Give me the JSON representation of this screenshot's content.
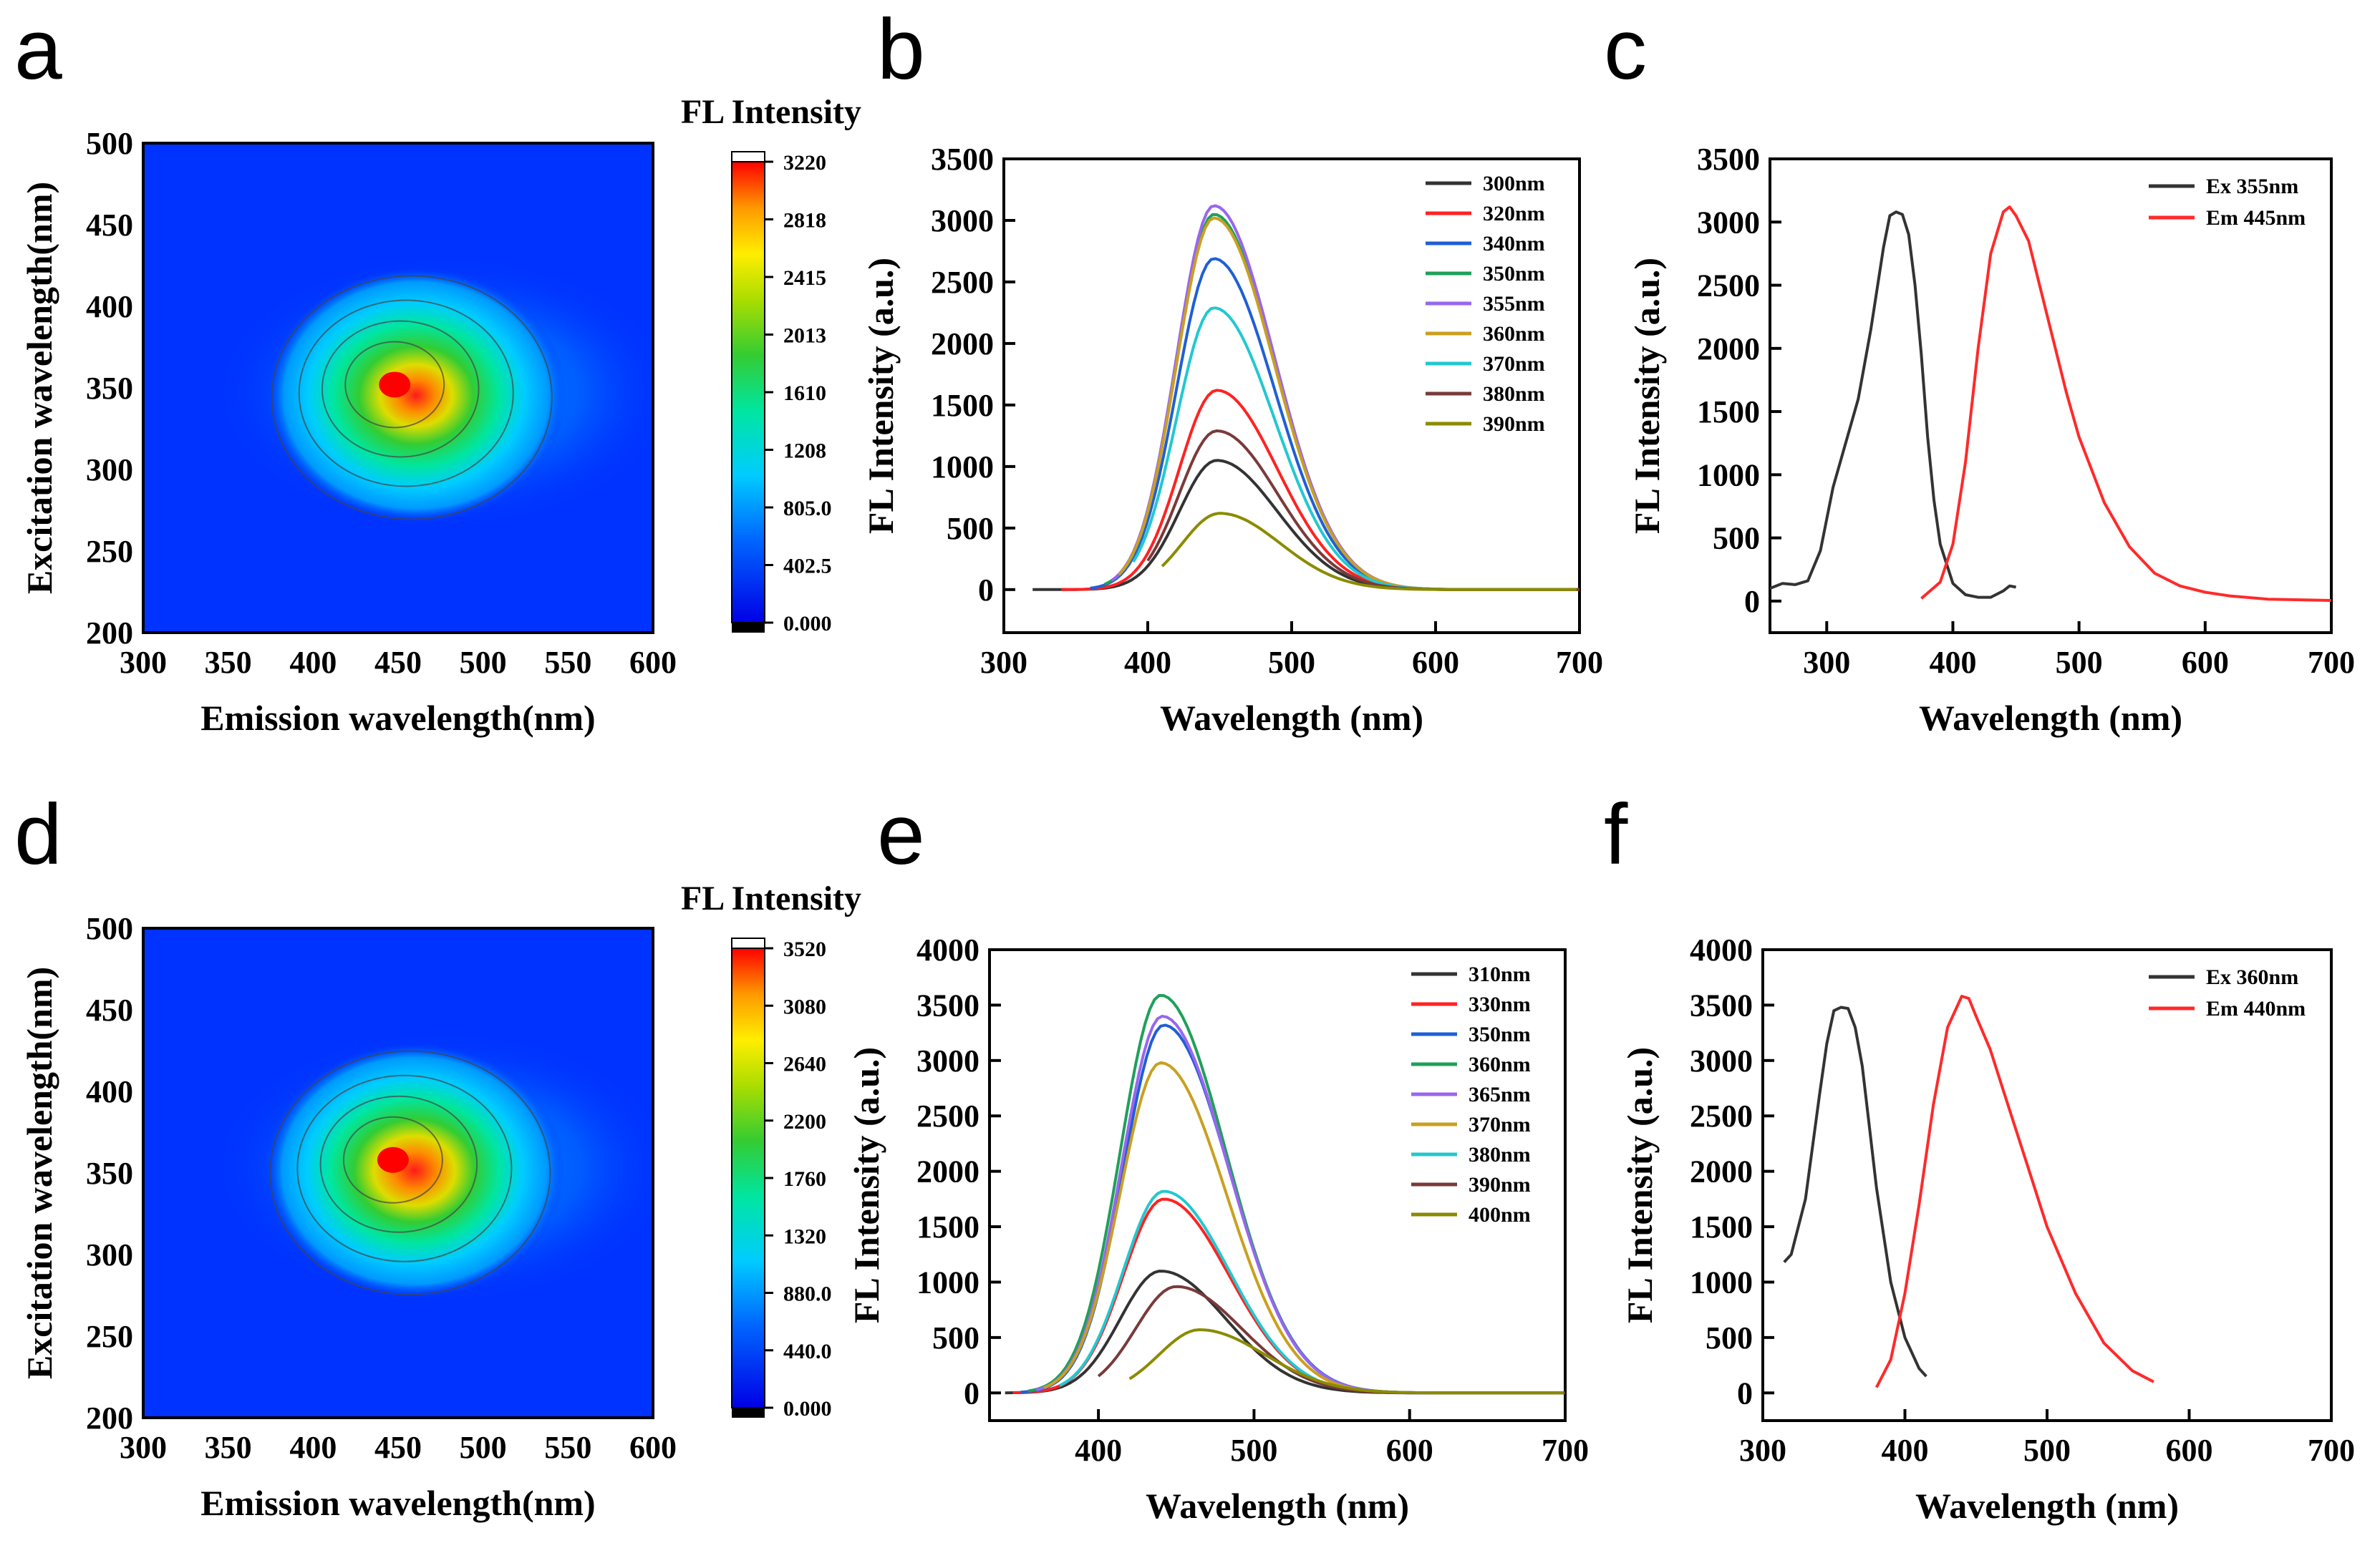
{
  "figure": {
    "panels": [
      "a",
      "b",
      "c",
      "d",
      "e",
      "f"
    ]
  },
  "chart_data": [
    {
      "id": "a",
      "type": "heatmap",
      "title": "",
      "colorbar_title": "FL Intensity",
      "xlabel": "Emission wavelength(nm)",
      "ylabel": "Excitation wavelength(nm)",
      "xlim": [
        300,
        600
      ],
      "ylim": [
        200,
        500
      ],
      "xticks": [
        "300",
        "350",
        "400",
        "450",
        "500",
        "550",
        "600"
      ],
      "yticks": [
        "200",
        "250",
        "300",
        "350",
        "400",
        "450",
        "500"
      ],
      "colorbar_ticks": [
        "0.000",
        "402.5",
        "805.0",
        "1208",
        "1610",
        "2013",
        "2415",
        "2818",
        "3220"
      ],
      "peak": {
        "emission": 448,
        "excitation": 352,
        "value": 3220
      },
      "background_color": "#0033ff"
    },
    {
      "id": "b",
      "type": "line",
      "xlabel": "Wavelength (nm)",
      "ylabel": "FL Intensity (a.u.)",
      "xlim": [
        300,
        700
      ],
      "ylim": [
        -350,
        3500
      ],
      "xticks": [
        "300",
        "400",
        "500",
        "600",
        "700"
      ],
      "yticks": [
        "0",
        "500",
        "1000",
        "1500",
        "2000",
        "2500",
        "3000",
        "3500"
      ],
      "series": [
        {
          "name": "300nm",
          "color": "#333333",
          "peak_x": 448,
          "peak_y": 1050,
          "x_start": 320
        },
        {
          "name": "320nm",
          "color": "#ff2222",
          "peak_x": 448,
          "peak_y": 1620,
          "x_start": 340
        },
        {
          "name": "340nm",
          "color": "#1f5fd6",
          "peak_x": 446,
          "peak_y": 2690,
          "x_start": 360
        },
        {
          "name": "350nm",
          "color": "#1fa05a",
          "peak_x": 446,
          "peak_y": 3050,
          "x_start": 370
        },
        {
          "name": "355nm",
          "color": "#9966ee",
          "peak_x": 446,
          "peak_y": 3120,
          "x_start": 375
        },
        {
          "name": "360nm",
          "color": "#c9a020",
          "peak_x": 446,
          "peak_y": 3020,
          "x_start": 380
        },
        {
          "name": "370nm",
          "color": "#22c8d0",
          "peak_x": 446,
          "peak_y": 2290,
          "x_start": 390
        },
        {
          "name": "380nm",
          "color": "#7a3a3a",
          "peak_x": 448,
          "peak_y": 1290,
          "x_start": 400
        },
        {
          "name": "390nm",
          "color": "#8b8b00",
          "peak_x": 450,
          "peak_y": 620,
          "x_start": 410
        }
      ]
    },
    {
      "id": "c",
      "type": "line",
      "xlabel": "Wavelength (nm)",
      "ylabel": "FL Intensity (a.u.)",
      "xlim": [
        255,
        700
      ],
      "ylim": [
        -250,
        3500
      ],
      "xticks": [
        "300",
        "400",
        "500",
        "600",
        "700"
      ],
      "yticks": [
        "0",
        "500",
        "1000",
        "1500",
        "2000",
        "2500",
        "3000",
        "3500"
      ],
      "series": [
        {
          "name": "Ex 355nm",
          "color": "#333333",
          "x": [
            255,
            265,
            275,
            285,
            295,
            305,
            315,
            325,
            335,
            345,
            350,
            355,
            360,
            365,
            370,
            375,
            380,
            385,
            390,
            400,
            410,
            420,
            430,
            440,
            445,
            450
          ],
          "y": [
            100,
            140,
            130,
            160,
            400,
            900,
            1250,
            1600,
            2150,
            2800,
            3050,
            3080,
            3060,
            2900,
            2500,
            1950,
            1300,
            800,
            450,
            140,
            50,
            30,
            30,
            80,
            120,
            110
          ]
        },
        {
          "name": "Em 445nm",
          "color": "#ff2a2a",
          "x": [
            375,
            390,
            400,
            410,
            420,
            430,
            440,
            445,
            450,
            460,
            470,
            480,
            490,
            500,
            520,
            540,
            560,
            580,
            600,
            620,
            650,
            700
          ],
          "y": [
            20,
            150,
            450,
            1100,
            2000,
            2750,
            3080,
            3120,
            3050,
            2850,
            2450,
            2050,
            1650,
            1300,
            780,
            430,
            220,
            120,
            70,
            40,
            15,
            5
          ]
        }
      ]
    },
    {
      "id": "d",
      "type": "heatmap",
      "title": "",
      "colorbar_title": "FL Intensity",
      "xlabel": "Emission wavelength(nm)",
      "ylabel": "Excitation wavelength(nm)",
      "xlim": [
        300,
        600
      ],
      "ylim": [
        200,
        500
      ],
      "xticks": [
        "300",
        "350",
        "400",
        "450",
        "500",
        "550",
        "600"
      ],
      "yticks": [
        "200",
        "250",
        "300",
        "350",
        "400",
        "450",
        "500"
      ],
      "colorbar_ticks": [
        "0.000",
        "440.0",
        "880.0",
        "1320",
        "1760",
        "2200",
        "2640",
        "3080",
        "3520"
      ],
      "peak": {
        "emission": 447,
        "excitation": 358,
        "value": 3520
      },
      "background_color": "#0033ff"
    },
    {
      "id": "e",
      "type": "line",
      "xlabel": "Wavelength (nm)",
      "ylabel": "FL Intensity (a.u.)",
      "xlim": [
        330,
        700
      ],
      "ylim": [
        -250,
        4000
      ],
      "xticks": [
        "400",
        "500",
        "600",
        "700"
      ],
      "yticks": [
        "0",
        "500",
        "1000",
        "1500",
        "2000",
        "2500",
        "3000",
        "3500",
        "4000"
      ],
      "series": [
        {
          "name": "310nm",
          "color": "#333333",
          "peak_x": 440,
          "peak_y": 1100,
          "x_start": 340
        },
        {
          "name": "330nm",
          "color": "#ff2222",
          "peak_x": 442,
          "peak_y": 1750,
          "x_start": 345
        },
        {
          "name": "350nm",
          "color": "#1f5fd6",
          "peak_x": 442,
          "peak_y": 3320,
          "x_start": 350
        },
        {
          "name": "360nm",
          "color": "#1fa05a",
          "peak_x": 440,
          "peak_y": 3590,
          "x_start": 355
        },
        {
          "name": "365nm",
          "color": "#9966ee",
          "peak_x": 441,
          "peak_y": 3400,
          "x_start": 360
        },
        {
          "name": "370nm",
          "color": "#c9a020",
          "peak_x": 440,
          "peak_y": 2980,
          "x_start": 365
        },
        {
          "name": "380nm",
          "color": "#22c8d0",
          "peak_x": 442,
          "peak_y": 1820,
          "x_start": 375
        },
        {
          "name": "390nm",
          "color": "#7a3a3a",
          "peak_x": 450,
          "peak_y": 960,
          "x_start": 400
        },
        {
          "name": "400nm",
          "color": "#8b8b00",
          "peak_x": 465,
          "peak_y": 570,
          "x_start": 420
        }
      ]
    },
    {
      "id": "f",
      "type": "line",
      "xlabel": "Wavelength (nm)",
      "ylabel": "FL Intensity (a.u.)",
      "xlim": [
        300,
        700
      ],
      "ylim": [
        -250,
        4000
      ],
      "xticks": [
        "300",
        "400",
        "500",
        "600",
        "700"
      ],
      "yticks": [
        "0",
        "500",
        "1000",
        "1500",
        "2000",
        "2500",
        "3000",
        "3500",
        "4000"
      ],
      "series": [
        {
          "name": "Ex 360nm",
          "color": "#333333",
          "x": [
            315,
            320,
            330,
            340,
            345,
            350,
            355,
            360,
            365,
            370,
            375,
            380,
            390,
            400,
            410,
            415
          ],
          "y": [
            1180,
            1250,
            1750,
            2700,
            3150,
            3450,
            3480,
            3470,
            3300,
            2950,
            2400,
            1850,
            1000,
            500,
            220,
            150
          ]
        },
        {
          "name": "Em 440nm",
          "color": "#ff2a2a",
          "x": [
            380,
            390,
            400,
            410,
            420,
            430,
            440,
            445,
            450,
            460,
            470,
            480,
            490,
            500,
            520,
            540,
            560,
            575
          ],
          "y": [
            50,
            300,
            900,
            1700,
            2600,
            3300,
            3580,
            3560,
            3400,
            3100,
            2700,
            2300,
            1900,
            1500,
            900,
            450,
            200,
            100
          ]
        }
      ]
    }
  ]
}
